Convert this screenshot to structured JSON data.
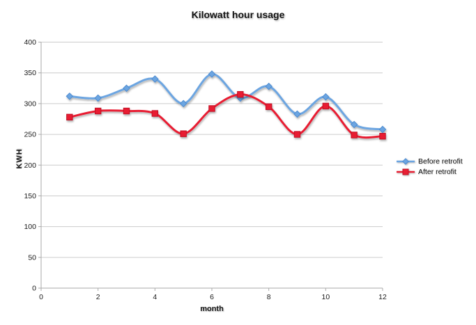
{
  "title": "Kilowatt hour usage",
  "chart_data": {
    "type": "line",
    "title": "Kilowatt hour usage",
    "xlabel": "month",
    "ylabel": "KWH",
    "x": [
      1,
      2,
      3,
      4,
      5,
      6,
      7,
      8,
      9,
      10,
      11,
      12
    ],
    "series": [
      {
        "name": "Before retrofit",
        "marker": "diamond",
        "color": "#6ca5e1",
        "marker_stroke": "#4d8bd0",
        "values": [
          312,
          309,
          325,
          340,
          300,
          348,
          309,
          328,
          283,
          311,
          266,
          258
        ]
      },
      {
        "name": "After retrofit",
        "marker": "square",
        "color": "#e81f33",
        "marker_stroke": "#c01024",
        "values": [
          278,
          288,
          288,
          284,
          251,
          292,
          315,
          295,
          250,
          296,
          249,
          247
        ]
      }
    ],
    "xlim": [
      0,
      12
    ],
    "ylim": [
      0,
      400
    ],
    "x_ticks": [
      0,
      2,
      4,
      6,
      8,
      10,
      12
    ],
    "y_ticks": [
      0,
      50,
      100,
      150,
      200,
      250,
      300,
      350,
      400
    ],
    "grid": true,
    "smoothed": true,
    "legend_position": "right"
  },
  "colors": {
    "grid": "#cccccc",
    "axis": "#aaaaaa",
    "tick_text": "#1a1a1a",
    "background": "#ffffff"
  }
}
